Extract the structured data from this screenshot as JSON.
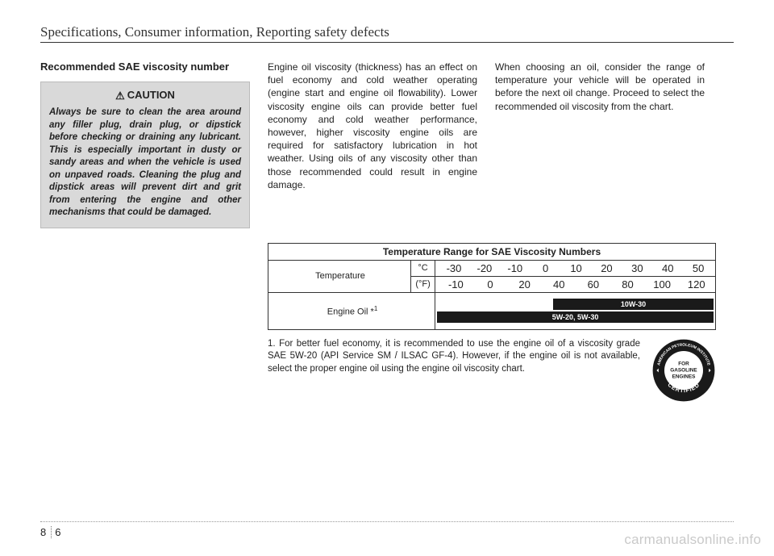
{
  "header": {
    "title": "Specifications, Consumer information, Reporting safety defects"
  },
  "col1": {
    "subhead": "Recommended SAE viscosity number",
    "caution_head": "CAUTION",
    "caution_body": "Always be sure to clean the area around any filler plug, drain plug, or dipstick before checking or draining any lubricant. This is especially important in dusty or sandy areas and when the vehicle is used on unpaved roads. Cleaning the plug and dipstick areas will prevent dirt and grit from entering the engine and other mechanisms that could be damaged."
  },
  "col2": {
    "body": "Engine oil viscosity (thickness) has an effect on fuel economy and cold weather operating (engine start and engine oil flowability). Lower viscosity engine oils can provide better fuel economy and cold weather performance, however, higher viscosity engine oils are required for satisfactory lubrication in hot weather. Using oils of any viscosity other than those recommended could result in engine damage."
  },
  "col3": {
    "body": "When choosing an oil, consider the range of temperature your vehicle will be operated in before the next oil change. Proceed to select the recommended oil viscosity from the chart."
  },
  "table": {
    "title": "Temperature Range for SAE Viscosity Numbers",
    "row_label": "Temperature",
    "unit_c": "°C",
    "unit_f": "(°F)",
    "scale_c": [
      "-30",
      "-20",
      "-10",
      "0",
      "10",
      "20",
      "30",
      "40",
      "50"
    ],
    "scale_f": [
      "-10",
      "0",
      "20",
      "40",
      "60",
      "80",
      "100",
      "120"
    ],
    "oil_label": "Engine Oil *",
    "oil_sup": "1",
    "bar1_label": "10W-30",
    "bar2_label": "5W-20, 5W-30",
    "bar1_start_pct": 42,
    "bar1_end_pct": 100,
    "bar2_start_pct": 0,
    "bar2_end_pct": 100,
    "bar_bg": "#1a1a1a",
    "bar_text": "#ffffff"
  },
  "footnote": {
    "text": "1. For better fuel economy, it is recommended to use the engine oil of a viscosity grade SAE 5W-20 (API Service SM / ILSAC GF-4). However, if the engine oil is not available, select the proper engine oil using the engine oil viscosity chart."
  },
  "seal": {
    "top": "AMERICAN PETROLEUM INSTITUTE",
    "center1": "FOR",
    "center2": "GASOLINE",
    "center3": "ENGINES",
    "bottom": "CERTIFIED"
  },
  "page_num": {
    "section": "8",
    "page": "6"
  },
  "watermark": "carmanualsonline.info",
  "colors": {
    "page_bg": "#ffffff",
    "caution_bg": "#d9d9d9",
    "text": "#222222",
    "rule": "#333333"
  }
}
